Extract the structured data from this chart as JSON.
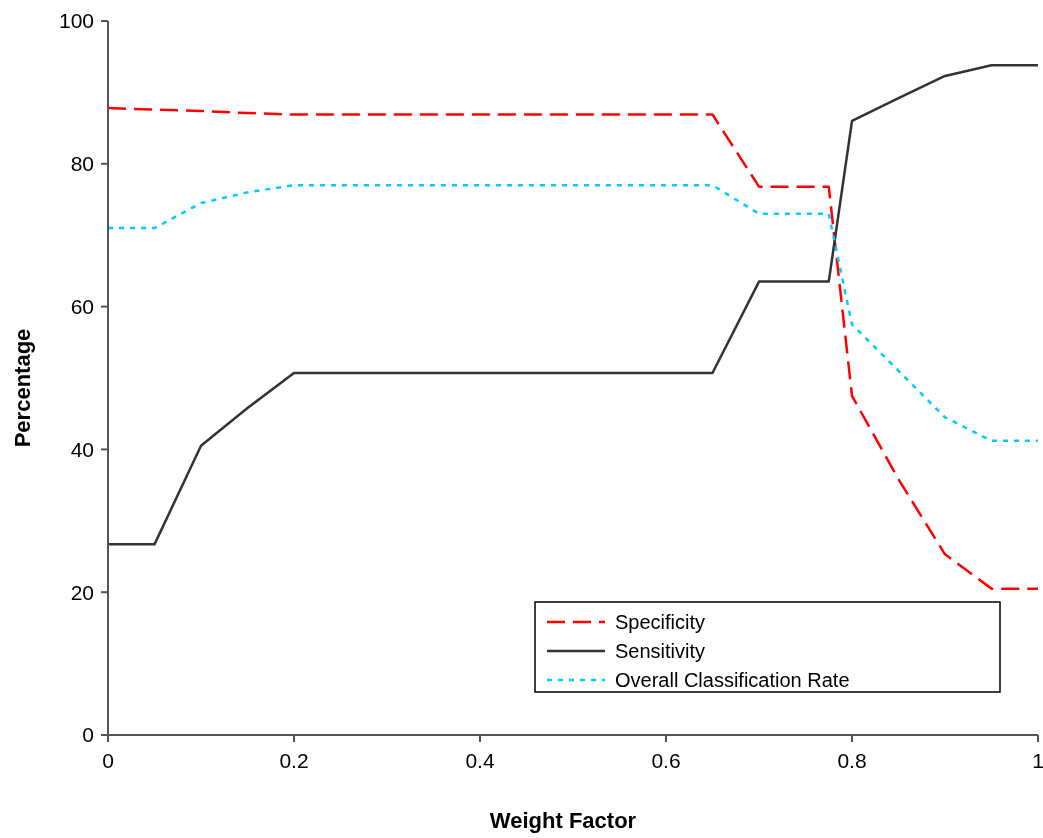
{
  "chart_data": {
    "type": "line",
    "xlabel": "Weight Factor",
    "ylabel": "Percentage",
    "x": [
      0,
      0.05,
      0.1,
      0.15,
      0.2,
      0.65,
      0.7,
      0.775,
      0.8,
      0.85,
      0.9,
      0.95,
      1
    ],
    "xlim": [
      0,
      1
    ],
    "xticks": [
      0,
      0.2,
      0.4,
      0.6,
      0.8,
      1
    ],
    "ylim": [
      0,
      100
    ],
    "yticks": [
      0,
      20,
      40,
      60,
      80,
      100
    ],
    "grid": false,
    "legend": "bottom right",
    "marker": "none",
    "series": [
      {
        "name": "Specificity",
        "color": "#ff0000",
        "line_style": "dashed",
        "values": [
          87.8,
          87.6,
          87.4,
          87.1,
          86.9,
          86.9,
          76.8,
          76.8,
          47.5,
          35.8,
          25.3,
          20.5,
          20.5
        ]
      },
      {
        "name": "Sensitivity",
        "color": "#333333",
        "line_style": "solid",
        "values": [
          26.7,
          26.7,
          40.5,
          45.8,
          50.7,
          50.7,
          63.5,
          63.5,
          86,
          89.2,
          92.3,
          93.8,
          93.8
        ]
      },
      {
        "name": "Overall Classification Rate",
        "color": "#00ccff",
        "line_style": "dotted",
        "values": [
          71,
          71,
          74.5,
          76,
          77,
          77,
          73,
          73,
          57.5,
          51,
          44.5,
          41.2,
          41.2
        ]
      }
    ]
  }
}
